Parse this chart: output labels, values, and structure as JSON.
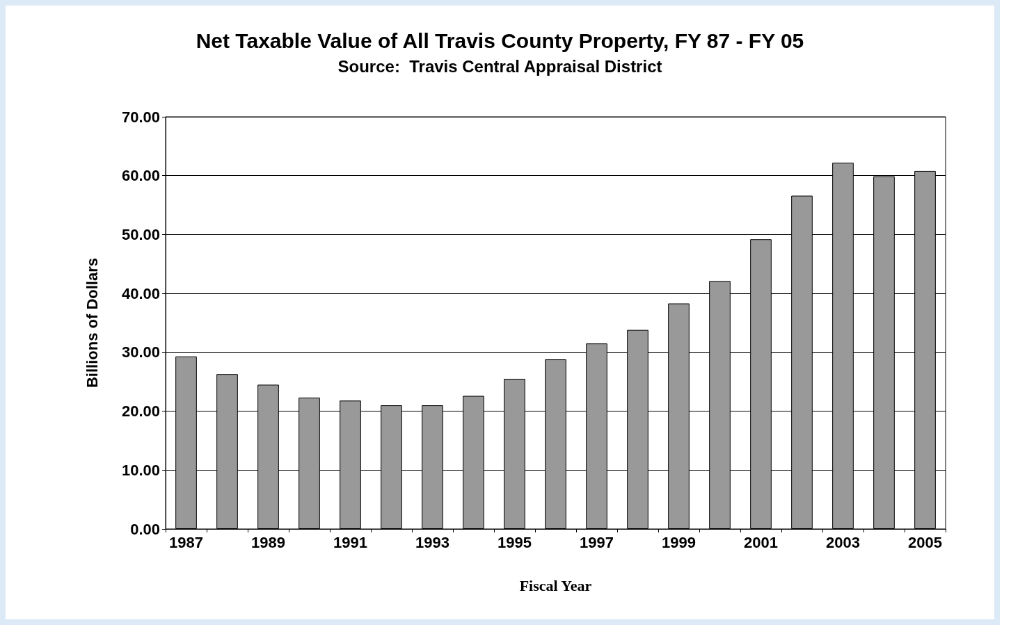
{
  "chart_data": {
    "type": "bar",
    "title": "Net Taxable Value of All Travis County Property, FY 87 - FY 05",
    "subtitle": "Source:  Travis Central Appraisal District",
    "xlabel": "Fiscal Year",
    "ylabel": "Billions of Dollars",
    "categories": [
      "1987",
      null,
      "1989",
      null,
      "1991",
      null,
      "1993",
      null,
      "1995",
      null,
      "1997",
      null,
      "1999",
      null,
      "2001",
      null,
      "2003",
      null,
      "2005"
    ],
    "values": [
      29.3,
      26.3,
      24.5,
      22.3,
      21.8,
      21.0,
      21.0,
      22.6,
      25.5,
      28.8,
      31.5,
      33.8,
      38.3,
      42.1,
      49.2,
      56.6,
      62.2,
      59.9,
      60.8
    ],
    "color": "#999999",
    "ylim": [
      0,
      70
    ],
    "yticks": [
      {
        "value": 0,
        "label": "0.00"
      },
      {
        "value": 10,
        "label": "10.00"
      },
      {
        "value": 20,
        "label": "20.00"
      },
      {
        "value": 30,
        "label": "30.00"
      },
      {
        "value": 40,
        "label": "40.00"
      },
      {
        "value": 50,
        "label": "50.00"
      },
      {
        "value": 60,
        "label": "60.00"
      },
      {
        "value": 70,
        "label": "70.00"
      }
    ],
    "grid": "y"
  }
}
